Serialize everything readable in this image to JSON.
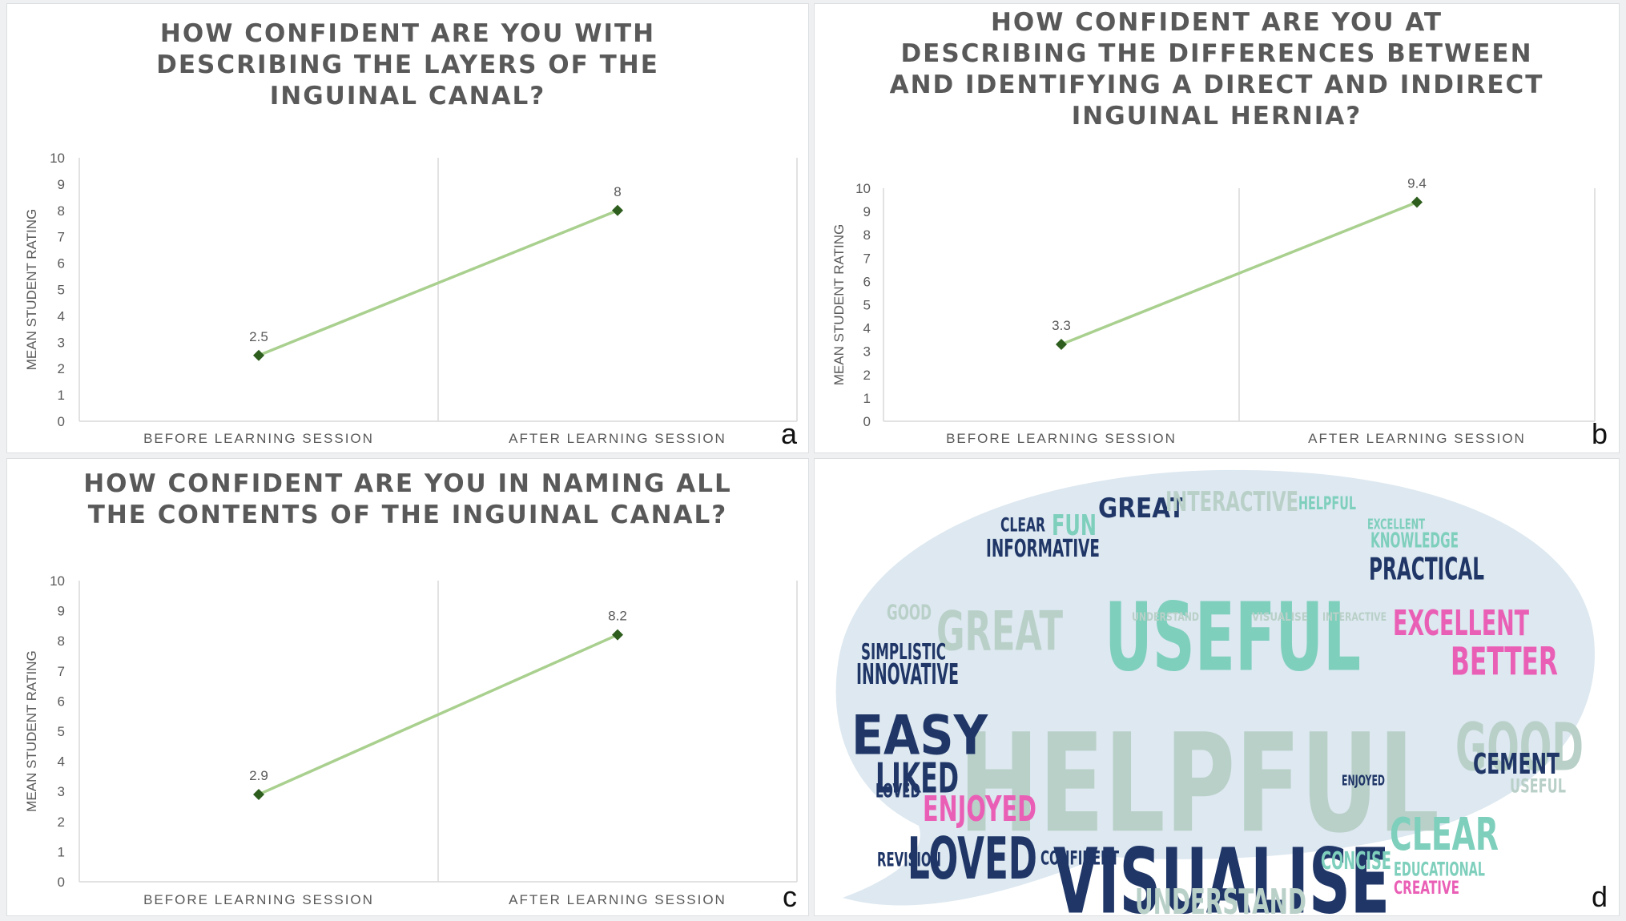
{
  "colors": {
    "line": "#a9d08e",
    "marker": "#2e5e1e",
    "axis": "#d9d9d9",
    "text": "#595959",
    "bubble": "#dde8f0",
    "navy": "#1f3667",
    "teal": "#7fcfbd",
    "pink": "#ea5fb6",
    "grey": "#b9d0c8"
  },
  "panels": [
    {
      "letter": "a",
      "title_lines": [
        "HOW CONFIDENT ARE YOU  WITH",
        "DESCRIBING THE LAYERS OF THE",
        "INGUINAL CANAL?"
      ]
    },
    {
      "letter": "b",
      "title_lines": [
        "HOW CONFIDENT ARE YOU AT",
        "DESCRIBING THE DIFFERENCES BETWEEN",
        "AND IDENTIFYING A DIRECT AND INDIRECT",
        "INGUINAL HERNIA?"
      ]
    },
    {
      "letter": "c",
      "title_lines": [
        "HOW CONFIDENT ARE YOU IN NAMING ALL",
        "THE CONTENTS OF THE INGUINAL CANAL?"
      ]
    }
  ],
  "chart_data": [
    {
      "type": "line",
      "title": "HOW CONFIDENT ARE YOU  WITH DESCRIBING THE LAYERS OF THE INGUINAL CANAL?",
      "categories": [
        "BEFORE LEARNING SESSION",
        "AFTER LEARNING SESSION"
      ],
      "values": [
        2.5,
        8
      ],
      "data_labels": [
        "2.5",
        "8"
      ],
      "ylabel": "MEAN STUDENT RATING",
      "ylim": [
        0,
        10
      ],
      "yticks": [
        "0",
        "1",
        "2",
        "3",
        "4",
        "5",
        "6",
        "7",
        "8",
        "9",
        "10"
      ],
      "grid": false
    },
    {
      "type": "line",
      "title": "HOW CONFIDENT ARE YOU AT DESCRIBING THE DIFFERENCES BETWEEN AND IDENTIFYING A DIRECT AND INDIRECT INGUINAL HERNIA?",
      "categories": [
        "BEFORE LEARNING SESSION",
        "AFTER LEARNING SESSION"
      ],
      "values": [
        3.3,
        9.4
      ],
      "data_labels": [
        "3.3",
        "9.4"
      ],
      "ylabel": "MEAN STUDENT RATING",
      "ylim": [
        0,
        10
      ],
      "yticks": [
        "0",
        "1",
        "2",
        "3",
        "4",
        "5",
        "6",
        "7",
        "8",
        "9",
        "10"
      ],
      "grid": false
    },
    {
      "type": "line",
      "title": "HOW CONFIDENT ARE YOU IN NAMING ALL THE CONTENTS OF THE INGUINAL CANAL?",
      "categories": [
        "BEFORE LEARNING SESSION",
        "AFTER LEARNING SESSION"
      ],
      "values": [
        2.9,
        8.2
      ],
      "data_labels": [
        "2.9",
        "8.2"
      ],
      "ylabel": "MEAN STUDENT RATING",
      "ylim": [
        0,
        10
      ],
      "yticks": [
        "0",
        "1",
        "2",
        "3",
        "4",
        "5",
        "6",
        "7",
        "8",
        "9",
        "10"
      ],
      "grid": false
    }
  ],
  "wordcloud": {
    "letter": "d",
    "words": [
      {
        "text": "HELPFUL",
        "color": "grey"
      },
      {
        "text": "USEFUL",
        "color": "teal"
      },
      {
        "text": "VISUALISE",
        "color": "navy"
      },
      {
        "text": "GREAT",
        "color": "grey"
      },
      {
        "text": "GREAT",
        "color": "navy"
      },
      {
        "text": "GOOD",
        "color": "grey"
      },
      {
        "text": "GOOD",
        "color": "grey"
      },
      {
        "text": "EASY",
        "color": "navy"
      },
      {
        "text": "LIKED",
        "color": "navy"
      },
      {
        "text": "LOVED",
        "color": "navy"
      },
      {
        "text": "LOVED",
        "color": "navy"
      },
      {
        "text": "EXCELLENT",
        "color": "pink"
      },
      {
        "text": "EXCELLENT",
        "color": "teal"
      },
      {
        "text": "BETTER",
        "color": "pink"
      },
      {
        "text": "ENJOYED",
        "color": "pink"
      },
      {
        "text": "ENJOYED",
        "color": "navy"
      },
      {
        "text": "CLEAR",
        "color": "teal"
      },
      {
        "text": "CLEAR",
        "color": "navy"
      },
      {
        "text": "CEMENT",
        "color": "navy"
      },
      {
        "text": "UNDERSTAND",
        "color": "grey"
      },
      {
        "text": "UNDERSTAND",
        "color": "grey"
      },
      {
        "text": "INTERACTIVE",
        "color": "grey"
      },
      {
        "text": "INTERACTIVE",
        "color": "grey"
      },
      {
        "text": "HELPFUL",
        "color": "teal"
      },
      {
        "text": "FUN",
        "color": "teal"
      },
      {
        "text": "INFORMATIVE",
        "color": "navy"
      },
      {
        "text": "KNOWLEDGE",
        "color": "teal"
      },
      {
        "text": "PRACTICAL",
        "color": "navy"
      },
      {
        "text": "SIMPLISTIC",
        "color": "navy"
      },
      {
        "text": "INNOVATIVE",
        "color": "navy"
      },
      {
        "text": "VISUALISE",
        "color": "grey"
      },
      {
        "text": "USEFUL",
        "color": "grey"
      },
      {
        "text": "EDUCATIONAL",
        "color": "teal"
      },
      {
        "text": "CREATIVE",
        "color": "pink"
      },
      {
        "text": "REVISION",
        "color": "navy"
      },
      {
        "text": "CONFIDENT",
        "color": "navy"
      },
      {
        "text": "CONCISE",
        "color": "teal"
      }
    ]
  }
}
